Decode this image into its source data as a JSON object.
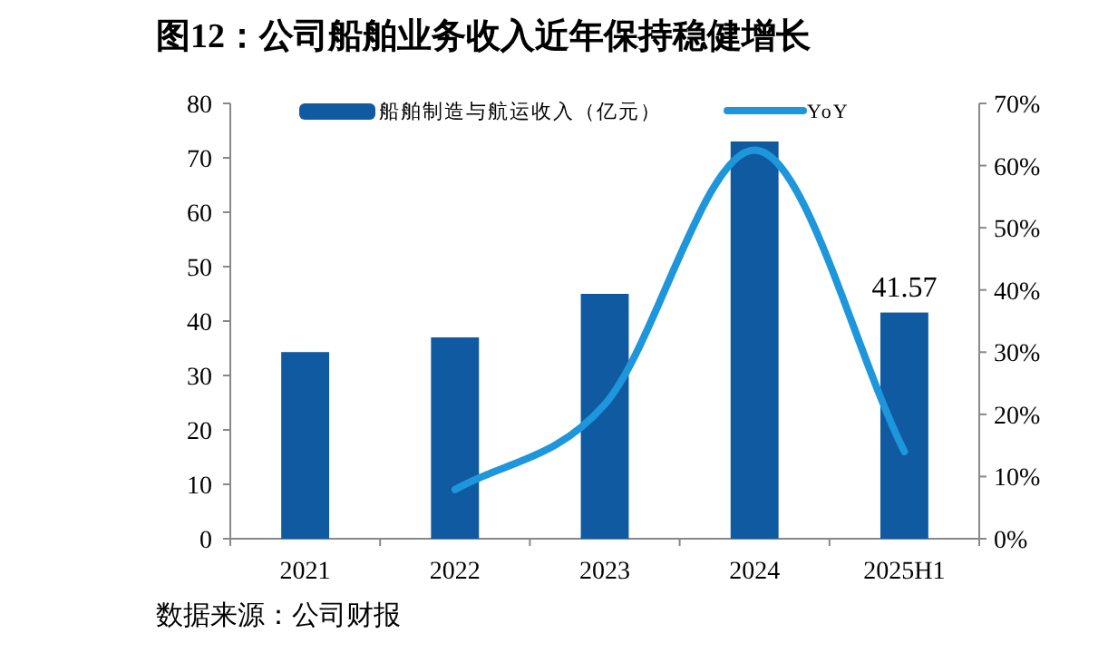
{
  "chart_data": {
    "type": "bar",
    "title": "图12：公司船舶业务收入近年保持稳健增长",
    "categories": [
      "2021",
      "2022",
      "2023",
      "2024",
      "2025H1"
    ],
    "series": [
      {
        "name": "船舶制造与航运收入（亿元）",
        "color": "#0f5aa0",
        "values": [
          34.3,
          37.0,
          45.0,
          73.0,
          41.57
        ],
        "value_labels": [
          null,
          null,
          null,
          null,
          "41.57"
        ]
      },
      {
        "name": "YoY",
        "type": "line",
        "axis": "y2",
        "color": "#1e96dc",
        "values": [
          null,
          7.9,
          21.6,
          62.5,
          14.0
        ]
      }
    ],
    "ylim": [
      0,
      80
    ],
    "yticks": [
      0,
      10,
      20,
      30,
      40,
      50,
      60,
      70,
      80
    ],
    "y2lim": [
      0,
      70
    ],
    "y2ticks": [
      {
        "value": 0,
        "label": "0%"
      },
      {
        "value": 10,
        "label": "10%"
      },
      {
        "value": 20,
        "label": "20%"
      },
      {
        "value": 30,
        "label": "30%"
      },
      {
        "value": 40,
        "label": "40%"
      },
      {
        "value": 50,
        "label": "50%"
      },
      {
        "value": 60,
        "label": "60%"
      },
      {
        "value": 70,
        "label": "70%"
      }
    ],
    "legend": "top",
    "grid": false,
    "annotations": [
      "数据来源：公司财报"
    ]
  }
}
